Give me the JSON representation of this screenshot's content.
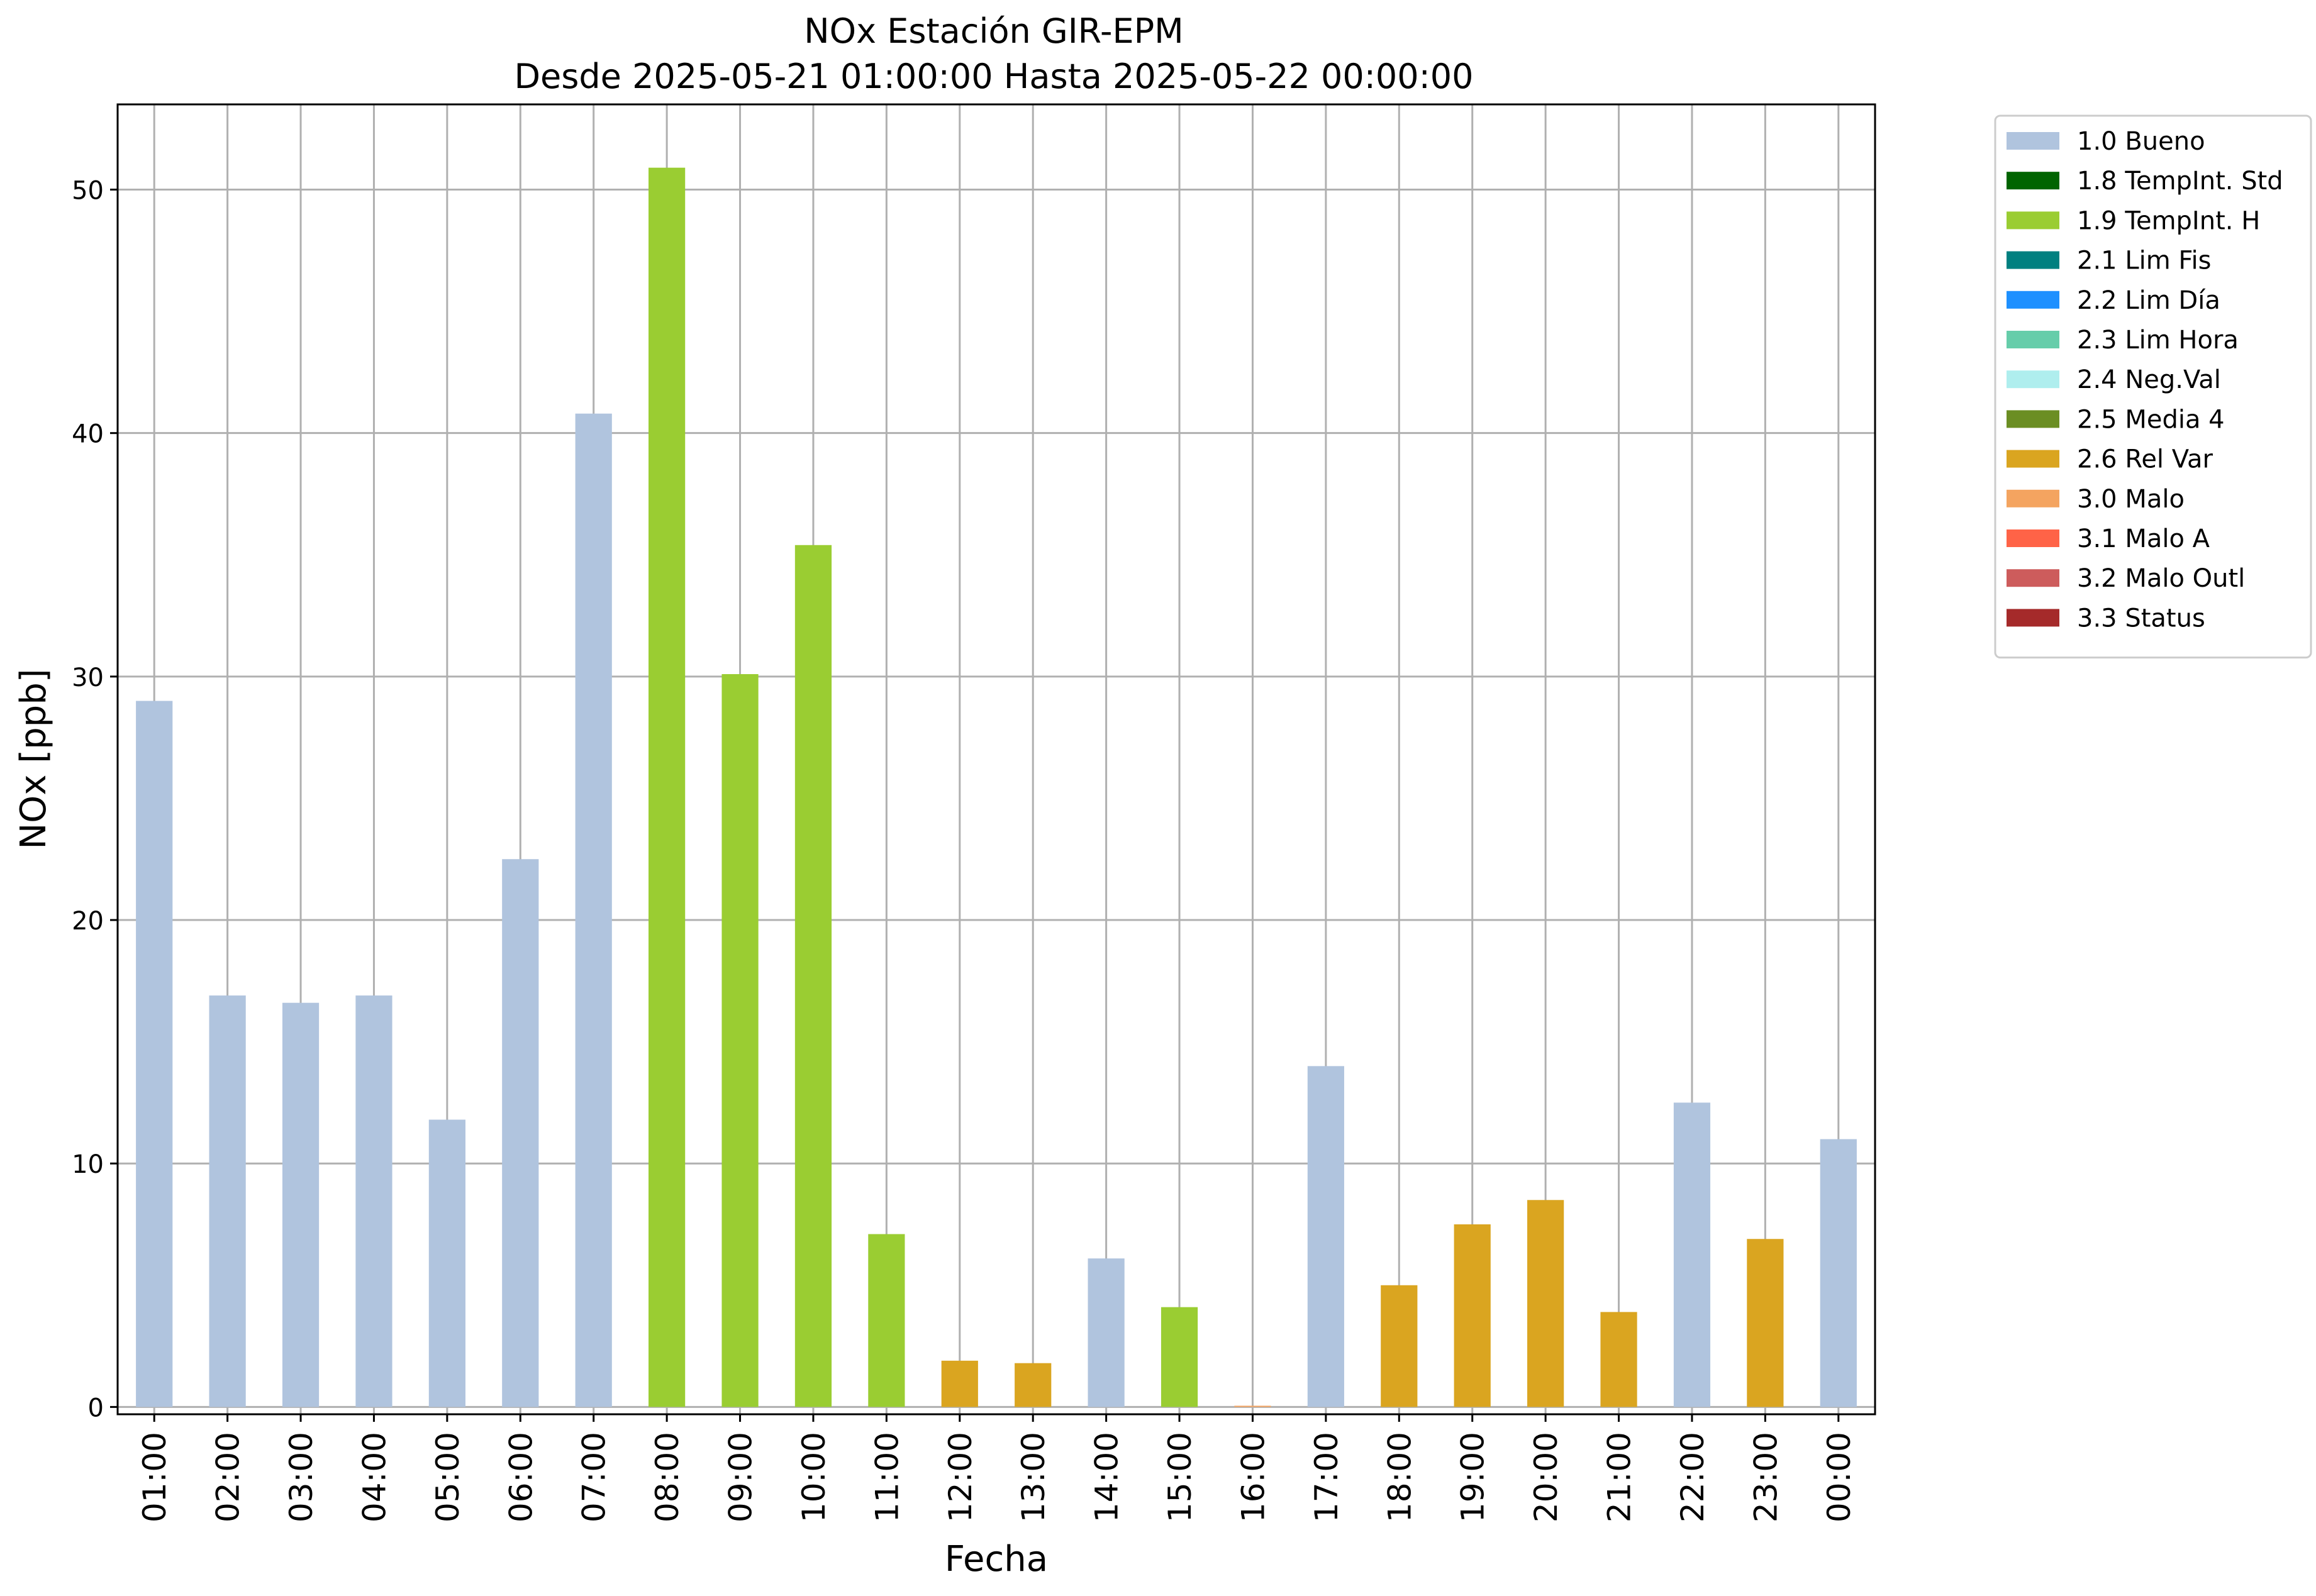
{
  "chart_data": {
    "type": "bar",
    "title": [
      "NOx Estación GIR-EPM",
      "Desde 2025-05-21 01:00:00 Hasta 2025-05-22 00:00:00"
    ],
    "xlabel": "Fecha",
    "ylabel": "NOx [ppb]",
    "ylim": [
      -0.3,
      53.5
    ],
    "yticks": [
      0,
      10,
      20,
      30,
      40,
      50
    ],
    "grid": true,
    "legend_position": "outside-top-right",
    "categories": [
      "01:00",
      "02:00",
      "03:00",
      "04:00",
      "05:00",
      "06:00",
      "07:00",
      "08:00",
      "09:00",
      "10:00",
      "11:00",
      "12:00",
      "13:00",
      "14:00",
      "15:00",
      "16:00",
      "17:00",
      "18:00",
      "19:00",
      "20:00",
      "21:00",
      "22:00",
      "23:00",
      "00:00"
    ],
    "values": [
      29.0,
      16.9,
      16.6,
      16.9,
      11.8,
      22.5,
      40.8,
      50.9,
      30.1,
      35.4,
      7.1,
      1.9,
      1.8,
      6.1,
      4.1,
      0.05,
      14.0,
      5.0,
      7.5,
      8.5,
      3.9,
      12.5,
      6.9,
      11.0
    ],
    "flags": [
      "1.0 Bueno",
      "1.0 Bueno",
      "1.0 Bueno",
      "1.0 Bueno",
      "1.0 Bueno",
      "1.0 Bueno",
      "1.0 Bueno",
      "1.9 TempInt. H",
      "1.9 TempInt. H",
      "1.9 TempInt. H",
      "1.9 TempInt. H",
      "2.6 Rel Var",
      "2.6 Rel Var",
      "1.0 Bueno",
      "1.9 TempInt. H",
      "3.0 Malo",
      "1.0 Bueno",
      "2.6 Rel Var",
      "2.6 Rel Var",
      "2.6 Rel Var",
      "2.6 Rel Var",
      "1.0 Bueno",
      "2.6 Rel Var",
      "1.0 Bueno"
    ],
    "legend": [
      {
        "label": "1.0 Bueno",
        "color": "#b0c4de"
      },
      {
        "label": "1.8 TempInt. Std",
        "color": "#006400"
      },
      {
        "label": "1.9 TempInt. H",
        "color": "#9acd32"
      },
      {
        "label": "2.1 Lim Fis",
        "color": "#008080"
      },
      {
        "label": "2.2 Lim Día",
        "color": "#1e90ff"
      },
      {
        "label": "2.3 Lim Hora",
        "color": "#66cdaa"
      },
      {
        "label": "2.4 Neg.Val",
        "color": "#afeeee"
      },
      {
        "label": "2.5 Media 4",
        "color": "#6b8e23"
      },
      {
        "label": "2.6 Rel Var",
        "color": "#daa520"
      },
      {
        "label": "3.0 Malo",
        "color": "#f4a460"
      },
      {
        "label": "3.1 Malo A",
        "color": "#ff6347"
      },
      {
        "label": "3.2 Malo Outl",
        "color": "#cd5c5c"
      },
      {
        "label": "3.3 Status",
        "color": "#a52a2a"
      }
    ]
  }
}
